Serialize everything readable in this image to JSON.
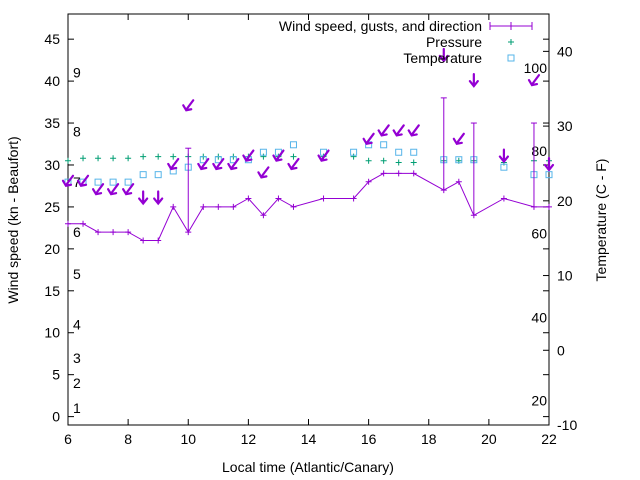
{
  "chart_data": {
    "type": "line",
    "xlabel": "Local time (Atlantic/Canary)",
    "ylabel": "Wind speed (kn - Beaufort)",
    "y2label": "Temperature (C - F)",
    "xlim": [
      6,
      22
    ],
    "ylim": [
      -1,
      48
    ],
    "y2lim": [
      -10,
      45
    ],
    "xticks": [
      "6",
      "8",
      "10",
      "12",
      "14",
      "16",
      "18",
      "20",
      "22"
    ],
    "yticks": [
      "0",
      "5",
      "10",
      "15",
      "20",
      "25",
      "30",
      "35",
      "40",
      "45"
    ],
    "y2ticks": [
      "-10",
      "0",
      "10",
      "20",
      "30",
      "40"
    ],
    "beaufort_labels": [
      {
        "label": "1",
        "kn": 1
      },
      {
        "label": "2",
        "kn": 4
      },
      {
        "label": "3",
        "kn": 7
      },
      {
        "label": "4",
        "kn": 11
      },
      {
        "label": "5",
        "kn": 17
      },
      {
        "label": "6",
        "kn": 22
      },
      {
        "label": "7",
        "kn": 28
      },
      {
        "label": "8",
        "kn": 34
      },
      {
        "label": "9",
        "kn": 41
      }
    ],
    "fahrenheit_labels": [
      {
        "label": "20",
        "celsius": -6.7
      },
      {
        "label": "40",
        "celsius": 4.4
      },
      {
        "label": "60",
        "celsius": 15.6
      },
      {
        "label": "80",
        "celsius": 26.7
      },
      {
        "label": "100",
        "celsius": 37.8
      }
    ],
    "legend_position": "top-right",
    "grid": false,
    "series": [
      {
        "name": "Wind speed, gusts, and direction",
        "color": "#9400d3",
        "x": [
          6,
          6.5,
          7,
          7.5,
          8,
          8.5,
          9,
          9.5,
          10,
          10.5,
          11,
          11.5,
          12,
          12.5,
          13,
          13.5,
          14.5,
          15.5,
          16,
          16.5,
          17,
          17.5,
          18.5,
          19,
          19.5,
          20.5,
          21.5,
          22
        ],
        "y": [
          23,
          23,
          22,
          22,
          22,
          21,
          21,
          25,
          22,
          25,
          25,
          25,
          26,
          24,
          26,
          25,
          26,
          26,
          28,
          29,
          29,
          29,
          27,
          28,
          24,
          26,
          25,
          25
        ],
        "gusts": [
          {
            "x": 10,
            "y": 32
          },
          {
            "x": 18.5,
            "y": 38
          },
          {
            "x": 19.5,
            "y": 35
          },
          {
            "x": 21.5,
            "y": 35
          }
        ],
        "direction_arrows": [
          {
            "x": 6,
            "kn": 28,
            "dir": "ne"
          },
          {
            "x": 6.5,
            "kn": 28,
            "dir": "ne"
          },
          {
            "x": 7,
            "kn": 27,
            "dir": "ne"
          },
          {
            "x": 7.5,
            "kn": 27,
            "dir": "ne"
          },
          {
            "x": 8,
            "kn": 27,
            "dir": "ne"
          },
          {
            "x": 8.5,
            "kn": 26,
            "dir": "n"
          },
          {
            "x": 9,
            "kn": 26,
            "dir": "n"
          },
          {
            "x": 9.5,
            "kn": 30,
            "dir": "ne"
          },
          {
            "x": 10,
            "kn": 37,
            "dir": "ne"
          },
          {
            "x": 10.5,
            "kn": 30,
            "dir": "ne"
          },
          {
            "x": 11,
            "kn": 30,
            "dir": "ne"
          },
          {
            "x": 11.5,
            "kn": 30,
            "dir": "ne"
          },
          {
            "x": 12,
            "kn": 31,
            "dir": "ne"
          },
          {
            "x": 12.5,
            "kn": 29,
            "dir": "ne"
          },
          {
            "x": 13,
            "kn": 31,
            "dir": "ne"
          },
          {
            "x": 13.5,
            "kn": 30,
            "dir": "ne"
          },
          {
            "x": 14.5,
            "kn": 31,
            "dir": "ne"
          },
          {
            "x": 16,
            "kn": 33,
            "dir": "ne"
          },
          {
            "x": 16.5,
            "kn": 34,
            "dir": "ne"
          },
          {
            "x": 17,
            "kn": 34,
            "dir": "ne"
          },
          {
            "x": 17.5,
            "kn": 34,
            "dir": "ne"
          },
          {
            "x": 18.5,
            "kn": 43,
            "dir": "n"
          },
          {
            "x": 19,
            "kn": 33,
            "dir": "ne"
          },
          {
            "x": 19.5,
            "kn": 40,
            "dir": "n"
          },
          {
            "x": 20.5,
            "kn": 31,
            "dir": "n"
          },
          {
            "x": 21.5,
            "kn": 40,
            "dir": "ne"
          },
          {
            "x": 22,
            "kn": 30,
            "dir": "n"
          }
        ]
      },
      {
        "name": "Pressure",
        "color": "#009e73",
        "x": [
          6,
          6.5,
          7,
          7.5,
          8,
          8.5,
          9,
          9.5,
          10,
          10.5,
          11,
          11.5,
          12,
          12.5,
          13,
          13.5,
          14.5,
          15.5,
          16,
          16.5,
          17,
          17.5,
          18.5,
          19,
          19.5,
          20.5,
          21.5,
          22
        ],
        "y": [
          30.5,
          30.8,
          30.8,
          30.8,
          30.8,
          31,
          31,
          31,
          31,
          31,
          31,
          31,
          31,
          31,
          31,
          31,
          31,
          31,
          30.5,
          30.5,
          30.3,
          30.3,
          30.5,
          30.5,
          30.5,
          30.3,
          30.5,
          30.5
        ]
      },
      {
        "name": "Temperature",
        "color": "#56b4e9",
        "x": [
          6,
          6.5,
          7,
          7.5,
          8,
          8.5,
          9,
          9.5,
          10,
          10.5,
          11,
          11.5,
          12,
          12.5,
          13,
          13.5,
          14.5,
          15.5,
          16,
          16.5,
          17,
          17.5,
          18.5,
          19,
          19.5,
          20.5,
          21.5,
          22
        ],
        "y": [
          22.5,
          22.5,
          22.5,
          22.5,
          22.5,
          23.5,
          23.5,
          24,
          24.5,
          25.5,
          25.5,
          25.5,
          25.5,
          26.5,
          26.5,
          27.5,
          26.5,
          26.5,
          27.5,
          27.5,
          26.5,
          26.5,
          25.5,
          25.5,
          25.5,
          24.5,
          23.5,
          23.5
        ]
      }
    ]
  }
}
